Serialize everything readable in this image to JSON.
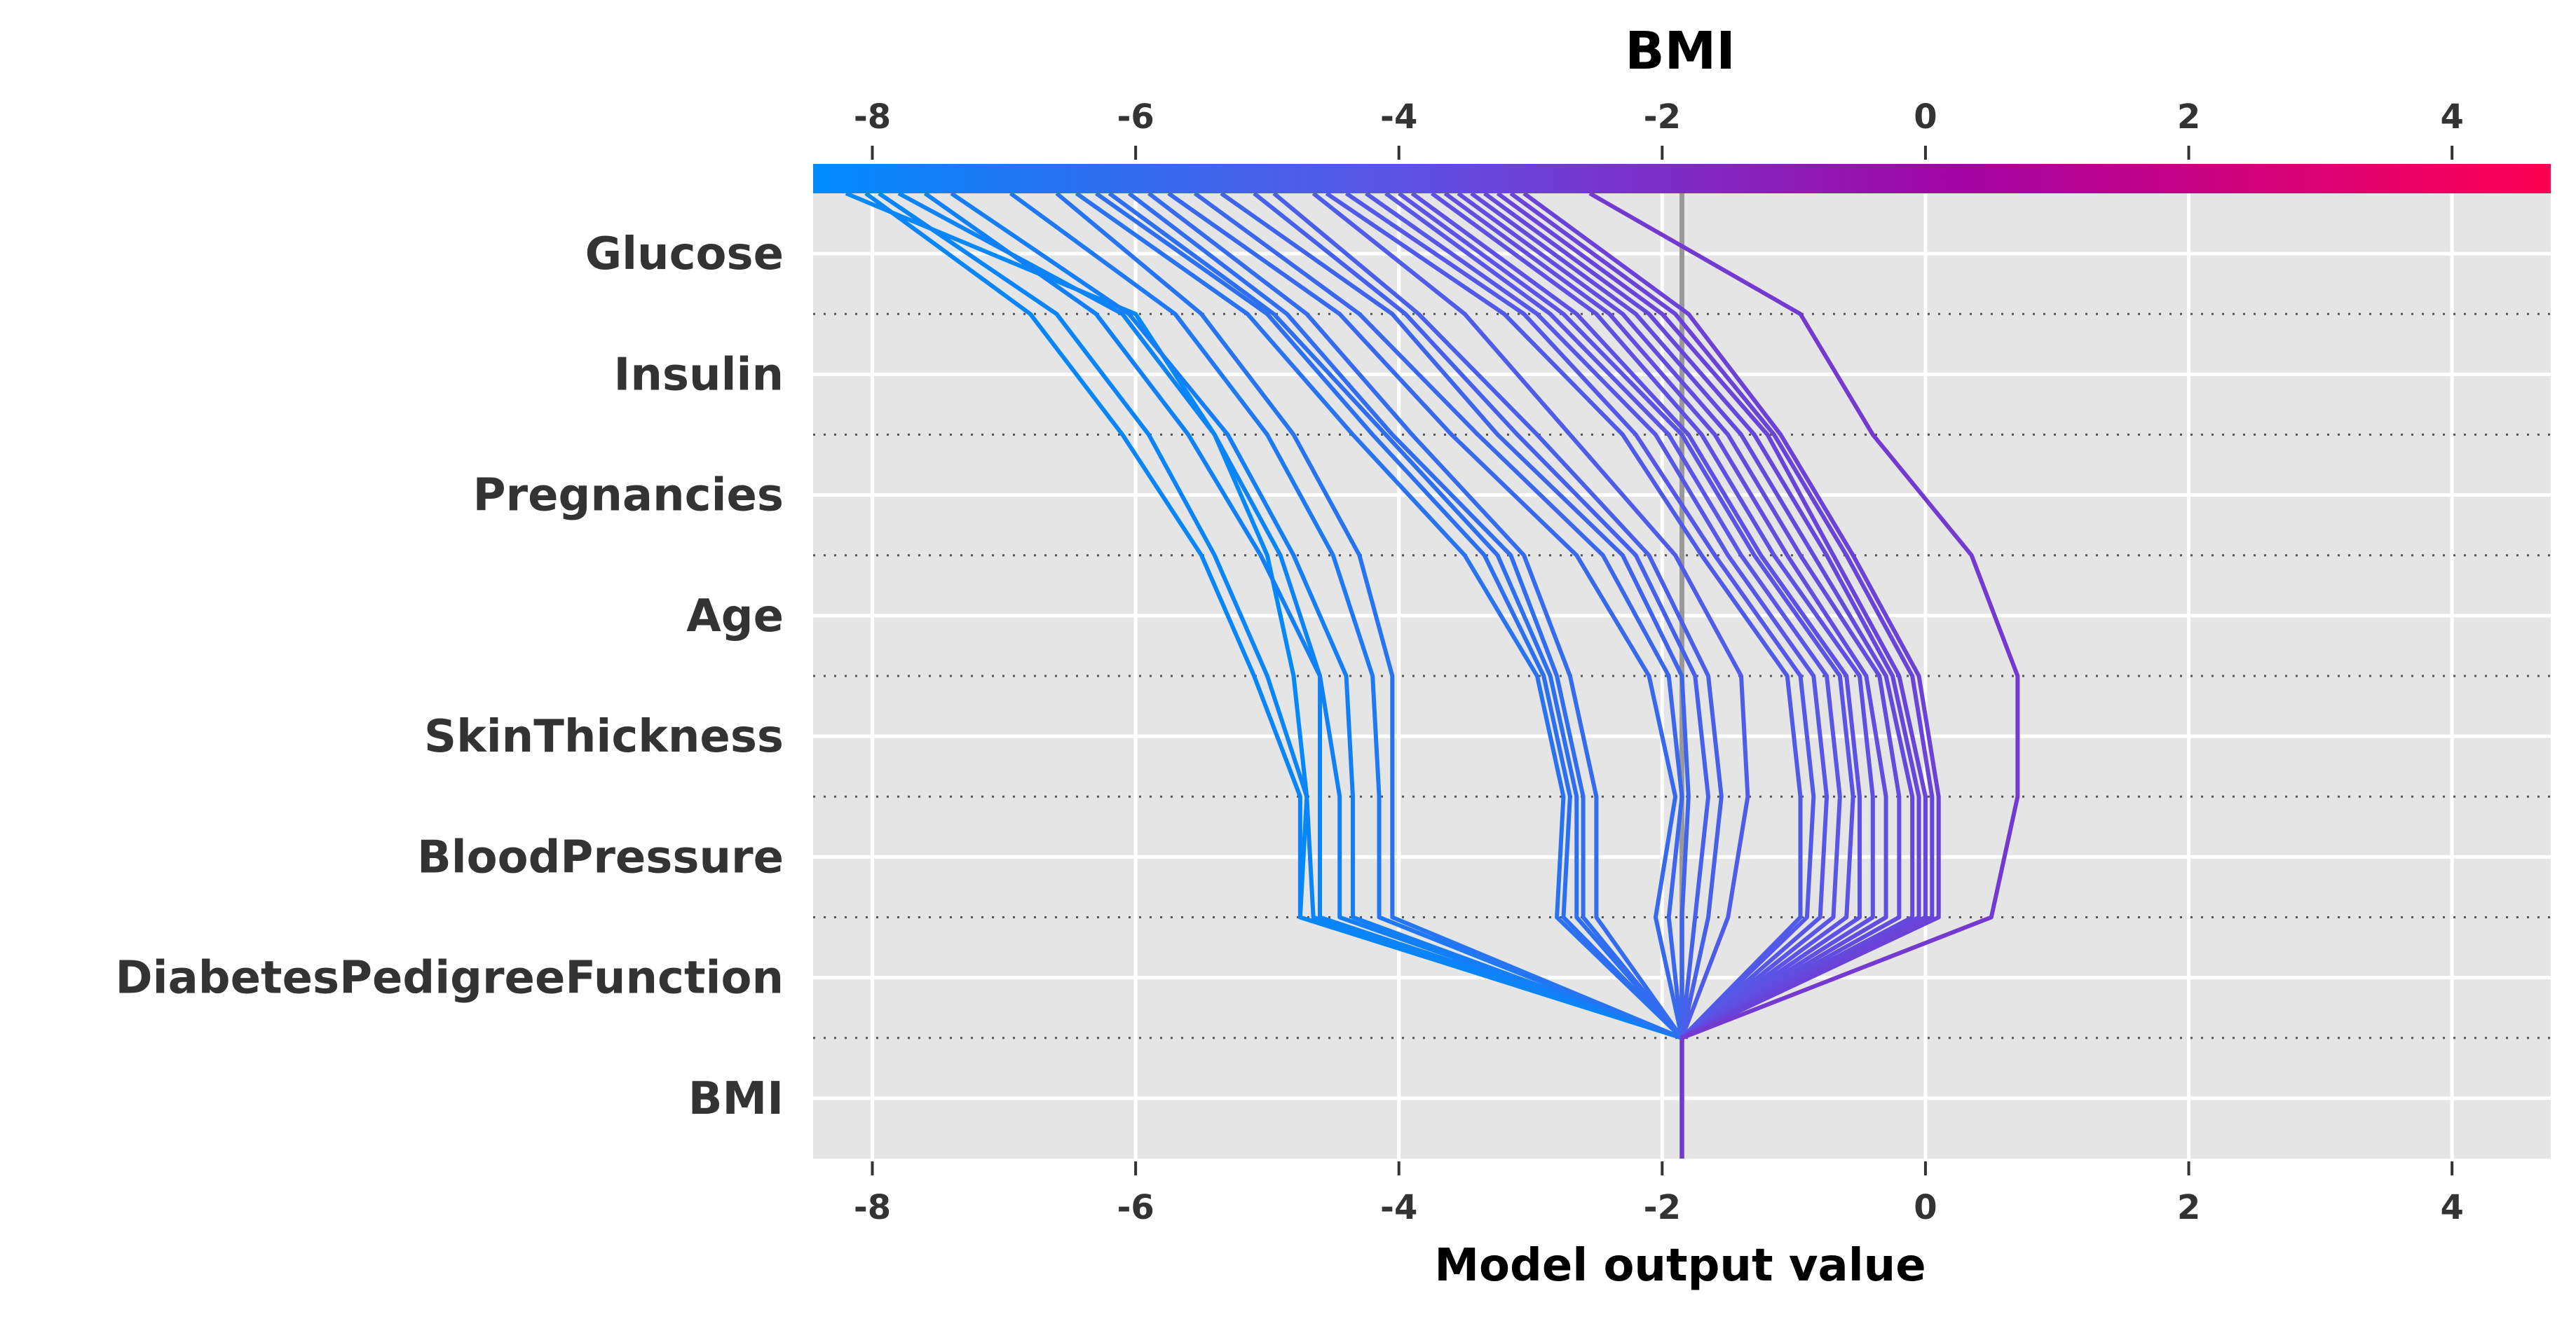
{
  "chart_data": {
    "type": "line",
    "title": "BMI",
    "xlabel": "Model output value",
    "ylabel": "",
    "xlim": [
      -8.45,
      4.75
    ],
    "xticks": [
      "-8",
      "-6",
      "-4",
      "-2",
      "0",
      "2",
      "4"
    ],
    "features": [
      "Glucose",
      "Insulin",
      "Pregnancies",
      "Age",
      "SkinThickness",
      "BloodPressure",
      "DiabetesPedigreeFunction",
      "BMI"
    ],
    "base_value": -1.85,
    "colorbar": {
      "min": -8.45,
      "max": 4.75,
      "colors": [
        "#008bfb",
        "#5a54e6",
        "#a304a5",
        "#ff0052"
      ]
    },
    "grid": true,
    "series": [
      {
        "values": [
          -8.2,
          -6.0,
          -5.4,
          -5.0,
          -4.8,
          -4.7,
          -4.75,
          -1.85
        ]
      },
      {
        "values": [
          -8.05,
          -6.8,
          -6.1,
          -5.5,
          -5.1,
          -4.75,
          -4.75,
          -1.85
        ]
      },
      {
        "values": [
          -7.95,
          -6.6,
          -5.9,
          -5.4,
          -5.0,
          -4.7,
          -4.65,
          -1.85
        ]
      },
      {
        "values": [
          -7.8,
          -6.1,
          -5.4,
          -4.9,
          -4.6,
          -4.6,
          -4.6,
          -1.85
        ]
      },
      {
        "values": [
          -7.6,
          -6.3,
          -5.6,
          -5.05,
          -4.6,
          -4.45,
          -4.45,
          -1.85
        ]
      },
      {
        "values": [
          -7.4,
          -6.05,
          -5.3,
          -4.8,
          -4.4,
          -4.35,
          -4.35,
          -1.85
        ]
      },
      {
        "values": [
          -6.95,
          -5.7,
          -5.0,
          -4.5,
          -4.2,
          -4.15,
          -4.15,
          -1.85
        ]
      },
      {
        "values": [
          -6.6,
          -5.5,
          -4.8,
          -4.3,
          -4.05,
          -4.05,
          -4.05,
          -1.85
        ]
      },
      {
        "values": [
          -6.45,
          -5.15,
          -4.35,
          -3.5,
          -2.95,
          -2.75,
          -2.8,
          -1.85
        ]
      },
      {
        "values": [
          -6.3,
          -5.0,
          -4.2,
          -3.35,
          -2.9,
          -2.7,
          -2.75,
          -1.85
        ]
      },
      {
        "values": [
          -6.2,
          -4.95,
          -4.1,
          -3.25,
          -2.85,
          -2.65,
          -2.65,
          -1.85
        ]
      },
      {
        "values": [
          -6.05,
          -4.85,
          -4.05,
          -3.15,
          -2.8,
          -2.6,
          -2.6,
          -1.85
        ]
      },
      {
        "values": [
          -5.9,
          -4.7,
          -3.9,
          -3.05,
          -2.7,
          -2.5,
          -2.5,
          -1.85
        ]
      },
      {
        "values": [
          -5.75,
          -4.45,
          -3.6,
          -2.65,
          -2.1,
          -1.9,
          -2.05,
          -1.85
        ]
      },
      {
        "values": [
          -5.55,
          -4.3,
          -3.4,
          -2.45,
          -1.95,
          -1.85,
          -1.95,
          -1.85
        ]
      },
      {
        "values": [
          -5.35,
          -4.05,
          -3.25,
          -2.3,
          -1.85,
          -1.8,
          -1.85,
          -1.85
        ]
      },
      {
        "values": [
          -5.1,
          -3.95,
          -3.1,
          -2.2,
          -1.75,
          -1.65,
          -1.75,
          -1.85
        ]
      },
      {
        "values": [
          -4.95,
          -3.85,
          -2.95,
          -2.1,
          -1.65,
          -1.55,
          -1.65,
          -1.85
        ]
      },
      {
        "values": [
          -4.65,
          -3.5,
          -2.7,
          -1.9,
          -1.4,
          -1.35,
          -1.5,
          -1.85
        ]
      },
      {
        "values": [
          -4.55,
          -3.2,
          -2.3,
          -1.7,
          -1.05,
          -0.95,
          -0.95,
          -1.85
        ]
      },
      {
        "values": [
          -4.4,
          -3.05,
          -2.2,
          -1.6,
          -0.95,
          -0.85,
          -0.9,
          -1.85
        ]
      },
      {
        "values": [
          -4.25,
          -2.95,
          -2.05,
          -1.5,
          -0.85,
          -0.75,
          -0.8,
          -1.85
        ]
      },
      {
        "values": [
          -4.1,
          -2.85,
          -1.95,
          -1.4,
          -0.75,
          -0.65,
          -0.7,
          -1.85
        ]
      },
      {
        "values": [
          -4.0,
          -2.75,
          -1.85,
          -1.3,
          -0.65,
          -0.55,
          -0.6,
          -1.85
        ]
      },
      {
        "values": [
          -3.9,
          -2.65,
          -1.8,
          -1.25,
          -0.6,
          -0.5,
          -0.5,
          -1.85
        ]
      },
      {
        "values": [
          -3.75,
          -2.5,
          -1.7,
          -1.15,
          -0.5,
          -0.4,
          -0.4,
          -1.85
        ]
      },
      {
        "values": [
          -3.65,
          -2.4,
          -1.6,
          -1.05,
          -0.45,
          -0.3,
          -0.3,
          -1.85
        ]
      },
      {
        "values": [
          -3.55,
          -2.3,
          -1.5,
          -0.95,
          -0.35,
          -0.2,
          -0.2,
          -1.85
        ]
      },
      {
        "values": [
          -3.45,
          -2.2,
          -1.4,
          -0.85,
          -0.3,
          -0.1,
          -0.1,
          -1.85
        ]
      },
      {
        "values": [
          -3.35,
          -2.1,
          -1.3,
          -0.75,
          -0.25,
          -0.05,
          -0.05,
          -1.85
        ]
      },
      {
        "values": [
          -3.25,
          -2.0,
          -1.2,
          -0.7,
          -0.2,
          0.0,
          0.0,
          -1.85
        ]
      },
      {
        "values": [
          -3.15,
          -1.9,
          -1.15,
          -0.6,
          -0.1,
          0.05,
          0.05,
          -1.85
        ]
      },
      {
        "values": [
          -3.05,
          -1.8,
          -1.1,
          -0.55,
          -0.05,
          0.1,
          0.1,
          -1.85
        ]
      },
      {
        "values": [
          -2.55,
          -0.95,
          -0.4,
          0.35,
          0.7,
          0.7,
          0.5,
          -1.85
        ]
      }
    ]
  }
}
